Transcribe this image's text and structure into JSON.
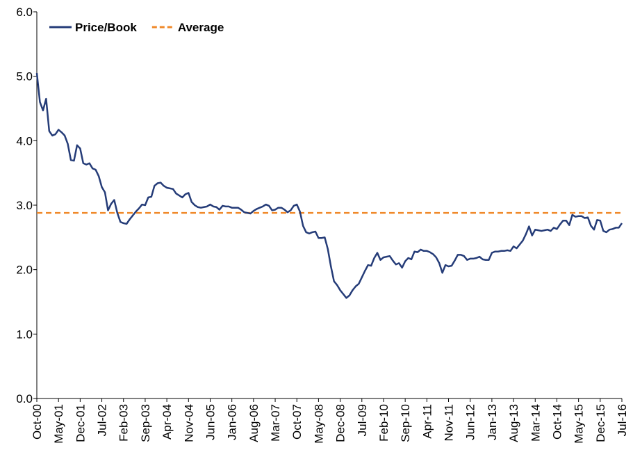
{
  "chart_data": {
    "type": "line",
    "categories": [
      "Oct-00",
      null,
      null,
      null,
      null,
      null,
      null,
      "May-01",
      null,
      null,
      null,
      null,
      null,
      null,
      "Dec-01",
      null,
      null,
      null,
      null,
      null,
      null,
      "Jul-02",
      null,
      null,
      null,
      null,
      null,
      null,
      "Feb-03",
      null,
      null,
      null,
      null,
      null,
      null,
      "Sep-03",
      null,
      null,
      null,
      null,
      null,
      null,
      "Apr-04",
      null,
      null,
      null,
      null,
      null,
      null,
      "Nov-04",
      null,
      null,
      null,
      null,
      null,
      null,
      "Jun-05",
      null,
      null,
      null,
      null,
      null,
      null,
      "Jan-06",
      null,
      null,
      null,
      null,
      null,
      null,
      "Aug-06",
      null,
      null,
      null,
      null,
      null,
      null,
      "Mar-07",
      null,
      null,
      null,
      null,
      null,
      null,
      "Oct-07",
      null,
      null,
      null,
      null,
      null,
      null,
      "May-08",
      null,
      null,
      null,
      null,
      null,
      null,
      "Dec-08",
      null,
      null,
      null,
      null,
      null,
      null,
      "Jul-09",
      null,
      null,
      null,
      null,
      null,
      null,
      "Feb-10",
      null,
      null,
      null,
      null,
      null,
      null,
      "Sep-10",
      null,
      null,
      null,
      null,
      null,
      null,
      "Apr-11",
      null,
      null,
      null,
      null,
      null,
      null,
      "Nov-11",
      null,
      null,
      null,
      null,
      null,
      null,
      "Jun-12",
      null,
      null,
      null,
      null,
      null,
      null,
      "Jan-13",
      null,
      null,
      null,
      null,
      null,
      null,
      "Aug-13",
      null,
      null,
      null,
      null,
      null,
      null,
      "Mar-14",
      null,
      null,
      null,
      null,
      null,
      null,
      "Oct-14",
      null,
      null,
      null,
      null,
      null,
      null,
      "May-15",
      null,
      null,
      null,
      null,
      null,
      null,
      "Dec-15",
      null,
      null,
      null,
      null,
      null,
      null,
      "Jul-16"
    ],
    "series": [
      {
        "name": "Price/Book",
        "color": "#253c78",
        "values": [
          5.05,
          4.6,
          4.47,
          4.65,
          4.15,
          4.08,
          4.1,
          4.17,
          4.13,
          4.08,
          3.95,
          3.7,
          3.69,
          3.93,
          3.88,
          3.65,
          3.63,
          3.65,
          3.57,
          3.55,
          3.45,
          3.28,
          3.2,
          2.92,
          3.02,
          3.08,
          2.88,
          2.74,
          2.72,
          2.71,
          2.78,
          2.84,
          2.9,
          2.95,
          3.01,
          3.0,
          3.12,
          3.13,
          3.3,
          3.34,
          3.35,
          3.3,
          3.27,
          3.26,
          3.25,
          3.18,
          3.15,
          3.12,
          3.17,
          3.19,
          3.05,
          3.0,
          2.97,
          2.96,
          2.97,
          2.98,
          3.01,
          2.98,
          2.97,
          2.93,
          2.99,
          2.98,
          2.98,
          2.96,
          2.96,
          2.96,
          2.93,
          2.89,
          2.88,
          2.87,
          2.91,
          2.94,
          2.96,
          2.98,
          3.01,
          2.99,
          2.92,
          2.93,
          2.96,
          2.96,
          2.93,
          2.89,
          2.92,
          2.99,
          3.01,
          2.9,
          2.68,
          2.58,
          2.56,
          2.58,
          2.59,
          2.49,
          2.49,
          2.5,
          2.32,
          2.05,
          1.82,
          1.76,
          1.68,
          1.62,
          1.56,
          1.6,
          1.68,
          1.74,
          1.78,
          1.88,
          1.98,
          2.07,
          2.06,
          2.18,
          2.26,
          2.15,
          2.19,
          2.2,
          2.21,
          2.14,
          2.08,
          2.1,
          2.03,
          2.13,
          2.18,
          2.16,
          2.28,
          2.27,
          2.31,
          2.29,
          2.29,
          2.27,
          2.24,
          2.19,
          2.1,
          1.95,
          2.07,
          2.05,
          2.06,
          2.14,
          2.23,
          2.23,
          2.21,
          2.15,
          2.17,
          2.17,
          2.18,
          2.2,
          2.16,
          2.15,
          2.15,
          2.26,
          2.28,
          2.28,
          2.29,
          2.29,
          2.3,
          2.29,
          2.36,
          2.33,
          2.39,
          2.45,
          2.55,
          2.67,
          2.53,
          2.62,
          2.61,
          2.6,
          2.61,
          2.62,
          2.6,
          2.65,
          2.63,
          2.7,
          2.76,
          2.76,
          2.69,
          2.85,
          2.82,
          2.83,
          2.83,
          2.8,
          2.81,
          2.68,
          2.62,
          2.77,
          2.76,
          2.6,
          2.58,
          2.62,
          2.63,
          2.65,
          2.65,
          2.72
        ]
      }
    ],
    "average": {
      "name": "Average",
      "color": "#f0892a",
      "value": 2.88
    },
    "ylim": [
      0,
      6
    ],
    "yticks": [
      {
        "value": 0,
        "label": "0.0"
      },
      {
        "value": 1,
        "label": "1.0"
      },
      {
        "value": 2,
        "label": "2.0"
      },
      {
        "value": 3,
        "label": "3.0"
      },
      {
        "value": 4,
        "label": "4.0"
      },
      {
        "value": 5,
        "label": "5.0"
      },
      {
        "value": 6,
        "label": "6.0"
      }
    ],
    "grid": false,
    "legend": "top-left"
  }
}
